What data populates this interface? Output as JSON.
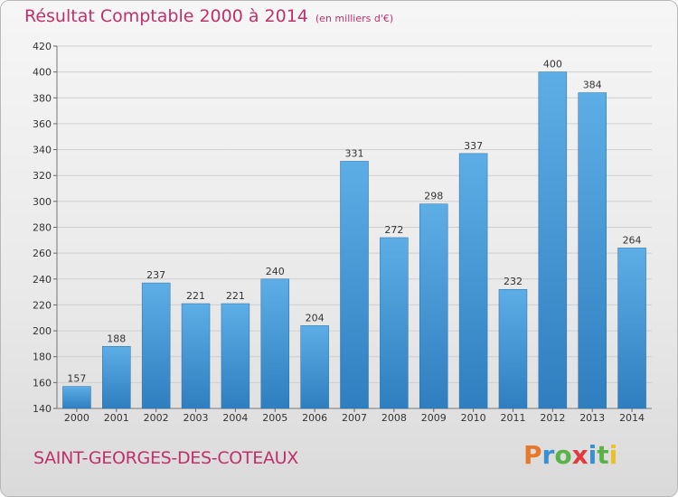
{
  "header": {
    "title": "Résultat Comptable 2000 à 2014",
    "unit": "(en milliers d'€)"
  },
  "footer": {
    "location": "SAINT-GEORGES-DES-COTEAUX",
    "logo_text": "Proxiti"
  },
  "colors": {
    "title": "#c0306a",
    "bar_light": "#5dade6",
    "bar_dark": "#2f7fc0",
    "logo": [
      "#e8792b",
      "#3a8fd0",
      "#5ab34a",
      "#e23b3b",
      "#3a8fd0",
      "#5ab34a",
      "#e8c12b"
    ]
  },
  "chart_data": {
    "type": "bar",
    "categories": [
      "2000",
      "2001",
      "2002",
      "2003",
      "2004",
      "2005",
      "2006",
      "2007",
      "2008",
      "2009",
      "2010",
      "2011",
      "2012",
      "2013",
      "2014"
    ],
    "values": [
      157,
      188,
      237,
      221,
      221,
      240,
      204,
      331,
      272,
      298,
      337,
      232,
      400,
      384,
      264
    ],
    "ylim": [
      140,
      420
    ],
    "yticks": [
      140,
      160,
      180,
      200,
      220,
      240,
      260,
      280,
      300,
      320,
      340,
      360,
      380,
      400,
      420
    ],
    "grid": true,
    "xlabel": "",
    "ylabel": ""
  }
}
